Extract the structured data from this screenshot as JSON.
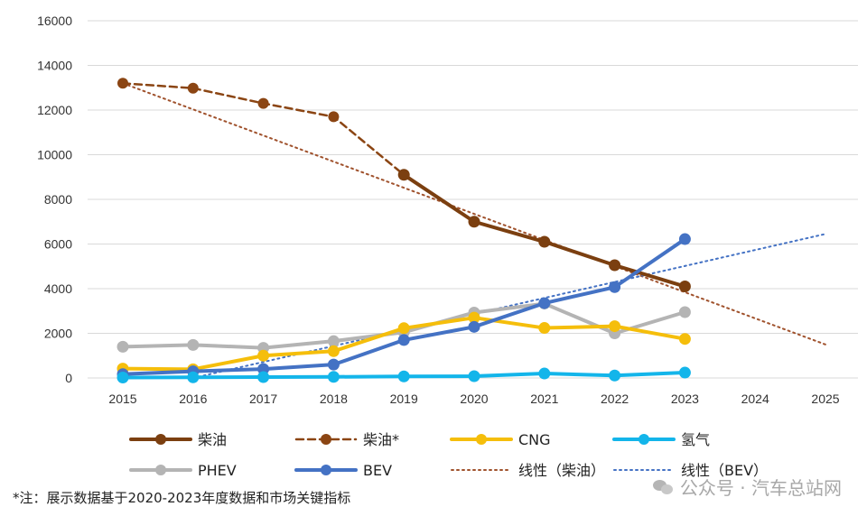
{
  "chart_data": {
    "type": "line",
    "x": [
      "2015",
      "2016",
      "2017",
      "2018",
      "2019",
      "2020",
      "2021",
      "2022",
      "2023",
      "2024",
      "2025"
    ],
    "yticks": [
      "0",
      "2000",
      "4000",
      "6000",
      "8000",
      "10000",
      "12000",
      "14000",
      "16000"
    ],
    "ylim": [
      0,
      16000
    ],
    "grid": true,
    "legend_position": "bottom",
    "series": [
      {
        "name": "柴油*",
        "color": "#8B4513",
        "style": "dashed",
        "values": [
          13200,
          12980,
          12300,
          11700,
          9100,
          null,
          null,
          null,
          null,
          null,
          null
        ]
      },
      {
        "name": "柴油",
        "color": "#7B3F10",
        "style": "solid",
        "values": [
          null,
          null,
          null,
          null,
          9100,
          7000,
          6100,
          5050,
          4100,
          null,
          null
        ]
      },
      {
        "name": "PHEV",
        "color": "#B4B4B4",
        "style": "solid",
        "values": [
          1400,
          1480,
          1350,
          1650,
          2050,
          2930,
          3330,
          2000,
          2950,
          null,
          null
        ]
      },
      {
        "name": "CNG",
        "color": "#F5BE0B",
        "style": "solid",
        "values": [
          420,
          390,
          1000,
          1200,
          2230,
          2700,
          2240,
          2320,
          1750,
          null,
          null
        ]
      },
      {
        "name": "BEV",
        "color": "#4472C4",
        "style": "solid",
        "values": [
          170,
          300,
          400,
          600,
          1700,
          2290,
          3350,
          4070,
          6220,
          null,
          null
        ]
      },
      {
        "name": "氢气",
        "color": "#13B5EA",
        "style": "solid",
        "values": [
          20,
          30,
          40,
          50,
          70,
          80,
          200,
          110,
          240,
          null,
          null
        ]
      }
    ],
    "trendlines": [
      {
        "name": "线性（柴油）",
        "color": "#A0522D",
        "from": [
          2015,
          13200
        ],
        "to": [
          2025,
          1500
        ]
      },
      {
        "name": "线性（BEV）",
        "color": "#4472C4",
        "from": [
          2016,
          0
        ],
        "to": [
          2025,
          6450
        ]
      }
    ],
    "legend": [
      {
        "label": "柴油",
        "key": "diesel"
      },
      {
        "label": "柴油*",
        "key": "diesel_star"
      },
      {
        "label": "CNG",
        "key": "cng"
      },
      {
        "label": "氢气",
        "key": "h2"
      },
      {
        "label": "PHEV",
        "key": "phev"
      },
      {
        "label": "BEV",
        "key": "bev"
      },
      {
        "label": "线性（柴油）",
        "key": "lin_diesel"
      },
      {
        "label": "线性（BEV）",
        "key": "lin_bev"
      }
    ]
  },
  "note": "*注：展示数据基于2020-2023年度数据和市场关键指标",
  "watermark": "公众号 · 汽车总站网"
}
